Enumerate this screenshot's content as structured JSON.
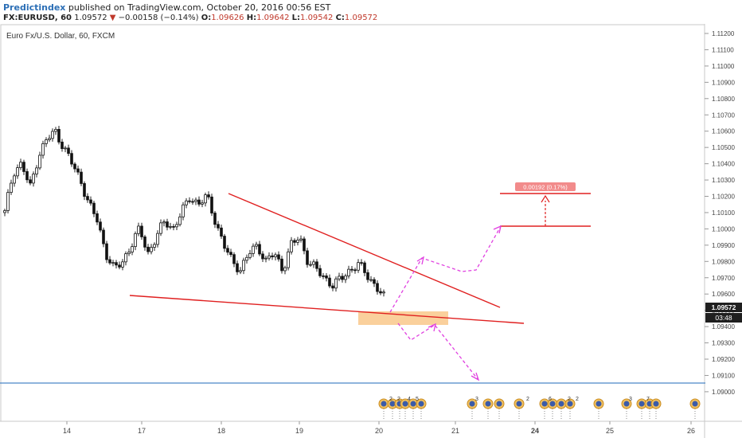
{
  "header": {
    "author": "Predictindex",
    "published_text": "published on TradingView.com, October 20, 2016 00:56 EST",
    "symbol_label": "FX:EURUSD, 60",
    "last": "1.09572",
    "change_arrow": "▼",
    "change": "−0.00158 (−0.14%)",
    "o_label": "O:",
    "o_val": "1.09626",
    "h_label": "H:",
    "h_val": "1.09642",
    "l_label": "L:",
    "l_val": "1.09542",
    "c_label": "C:",
    "c_val": "1.09572"
  },
  "chart_data": {
    "type": "candlestick",
    "title": "Euro Fx/U.S. Dollar, 60, FXCM",
    "y_ticks": [
      "1.11200",
      "1.11100",
      "1.11000",
      "1.10900",
      "1.10800",
      "1.10700",
      "1.10600",
      "1.10500",
      "1.10400",
      "1.10300",
      "1.10200",
      "1.10100",
      "1.10000",
      "1.09900",
      "1.09800",
      "1.09700",
      "1.09600",
      "1.09500",
      "1.09400",
      "1.09300",
      "1.09200",
      "1.09100",
      "1.09000"
    ],
    "ylim": [
      1.0895,
      1.1125
    ],
    "x_ticks": [
      "14",
      "17",
      "18",
      "19",
      "20",
      "21",
      "24",
      "25",
      "26"
    ],
    "x_tick_bold": [
      "24"
    ],
    "last_price_label": "1.09572",
    "countdown_label": "03:48",
    "measure_label": "0.00192 (0.17%)",
    "horizontal_line": 1.09125,
    "price_path": [
      [
        0,
        1.101
      ],
      [
        2,
        1.1035
      ],
      [
        4,
        1.104
      ],
      [
        6,
        1.1025
      ],
      [
        8,
        1.1045
      ],
      [
        10,
        1.1055
      ],
      [
        12,
        1.106
      ],
      [
        14,
        1.105
      ],
      [
        16,
        1.104
      ],
      [
        18,
        1.103
      ],
      [
        20,
        1.1015
      ],
      [
        22,
        1.1005
      ],
      [
        24,
        1.0985
      ],
      [
        26,
        1.0975
      ],
      [
        28,
        1.098
      ],
      [
        30,
        1.099
      ],
      [
        32,
        1.1
      ],
      [
        34,
        1.0985
      ],
      [
        36,
        1.0995
      ],
      [
        38,
        1.1005
      ],
      [
        40,
        1.1
      ],
      [
        42,
        1.101
      ],
      [
        44,
        1.102
      ],
      [
        46,
        1.1015
      ],
      [
        48,
        1.102
      ],
      [
        50,
        1.1005
      ],
      [
        52,
        1.099
      ],
      [
        54,
        1.098
      ],
      [
        56,
        1.0975
      ],
      [
        58,
        1.0985
      ],
      [
        60,
        1.099
      ],
      [
        62,
        1.098
      ],
      [
        64,
        1.0985
      ],
      [
        66,
        1.0975
      ],
      [
        68,
        1.099
      ],
      [
        70,
        1.0995
      ],
      [
        72,
        1.098
      ],
      [
        74,
        1.0975
      ],
      [
        76,
        1.097
      ],
      [
        78,
        1.0965
      ],
      [
        80,
        1.097
      ],
      [
        82,
        1.0975
      ],
      [
        84,
        1.0978
      ],
      [
        86,
        1.0972
      ],
      [
        88,
        1.0965
      ],
      [
        90,
        1.0958
      ]
    ],
    "triangle_upper": [
      [
        1.1025,
        "start"
      ],
      [
        1.0959,
        "end"
      ]
    ],
    "triangle_lower": [
      [
        1.0964,
        "start"
      ],
      [
        1.0945,
        "end"
      ]
    ],
    "event_counts": [
      "2",
      "2",
      "4",
      "5",
      "3",
      "2",
      "6",
      "2",
      "2",
      "3",
      "7"
    ]
  }
}
